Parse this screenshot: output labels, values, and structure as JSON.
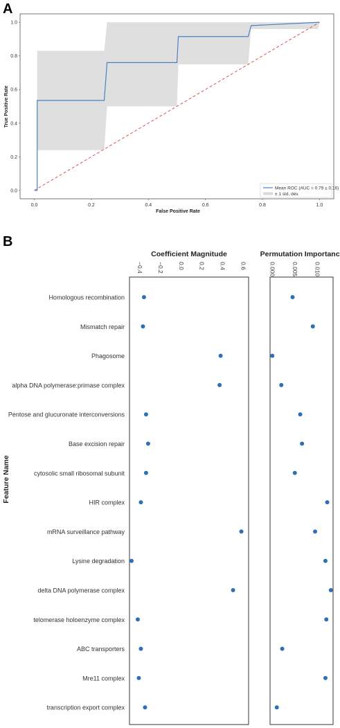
{
  "panel_labels": [
    "A",
    "B"
  ],
  "chart_data": [
    {
      "type": "line",
      "panel": "A",
      "xlabel": "False Positive Rate",
      "ylabel": "True Positive Rate",
      "xlim": [
        -0.05,
        1.05
      ],
      "ylim": [
        -0.05,
        1.05
      ],
      "xticks": [
        0.0,
        0.2,
        0.4,
        0.6,
        0.8,
        1.0
      ],
      "yticks": [
        0.0,
        0.2,
        0.4,
        0.6,
        0.8,
        1.0
      ],
      "grid": false,
      "legend_position": "bottom-right",
      "series": [
        {
          "name": "Mean ROC (AUC = 0.79 ± 0.16)",
          "color": "#4a80c4",
          "x": [
            0.0,
            0.01,
            0.01,
            0.245,
            0.255,
            0.5,
            0.505,
            0.75,
            0.76,
            1.0
          ],
          "y": [
            0.0,
            0.0,
            0.535,
            0.535,
            0.76,
            0.76,
            0.915,
            0.915,
            0.98,
            1.0
          ]
        },
        {
          "name": "± 1 std. dev.",
          "type": "band",
          "color": "#d9d9d9",
          "x": [
            0.0,
            0.01,
            0.01,
            0.245,
            0.255,
            0.5,
            0.505,
            0.75,
            0.76,
            0.995,
            1.0
          ],
          "upper": [
            0.0,
            0.0,
            0.83,
            0.83,
            1.0,
            1.0,
            1.0,
            1.0,
            1.0,
            1.0,
            1.0
          ],
          "lower": [
            0.0,
            0.0,
            0.24,
            0.24,
            0.5,
            0.5,
            0.75,
            0.75,
            0.96,
            0.96,
            1.0
          ]
        },
        {
          "name": "chance",
          "type": "dashed",
          "color": "#e05050",
          "x": [
            0.0,
            1.0
          ],
          "y": [
            0.0,
            1.0
          ]
        }
      ],
      "legend": [
        "Mean ROC (AUC = 0.79 ± 0.16)",
        "± 1 std. dev."
      ]
    },
    {
      "type": "scatter",
      "panel": "B",
      "ylabel": "Feature Name",
      "categories": [
        "Homologous recombination",
        "Mismatch repair",
        "Phagosome",
        "alpha DNA polymerase:primase complex",
        "Pentose and glucuronate interconversions",
        "Base excision repair",
        "cytosolic small ribosomal subunit",
        "HIR complex",
        "mRNA surveillance pathway",
        "Lysine degradation",
        "delta DNA polymerase complex",
        "telomerase holoenzyme complex",
        "ABC transporters",
        "Mre11 complex",
        "transcription export complex"
      ],
      "marker_color": "#2f6fb3",
      "subplots": [
        {
          "title": "Coefficient Magnitude",
          "xlim": [
            -0.5,
            0.65
          ],
          "xticks": [
            -0.4,
            -0.2,
            0.0,
            0.2,
            0.4,
            0.6
          ],
          "xtick_labels": [
            "−0.4",
            "−0.2",
            "0.0",
            "0.2",
            "0.4",
            "0.6"
          ],
          "values": [
            -0.36,
            -0.37,
            0.38,
            0.37,
            -0.34,
            -0.32,
            -0.34,
            -0.39,
            0.58,
            -0.48,
            0.5,
            -0.42,
            -0.39,
            -0.41,
            -0.35
          ]
        },
        {
          "title": "Permutation Importance",
          "xlim": [
            -0.0005,
            0.0135
          ],
          "xticks": [
            0.0,
            0.005,
            0.01
          ],
          "xtick_labels": [
            "0.000",
            "0.005",
            "0.010"
          ],
          "values": [
            0.0045,
            0.009,
            0.0,
            0.002,
            0.0062,
            0.0066,
            0.005,
            0.0122,
            0.0095,
            0.0118,
            0.013,
            0.012,
            0.0022,
            0.0118,
            0.001
          ]
        }
      ]
    }
  ]
}
